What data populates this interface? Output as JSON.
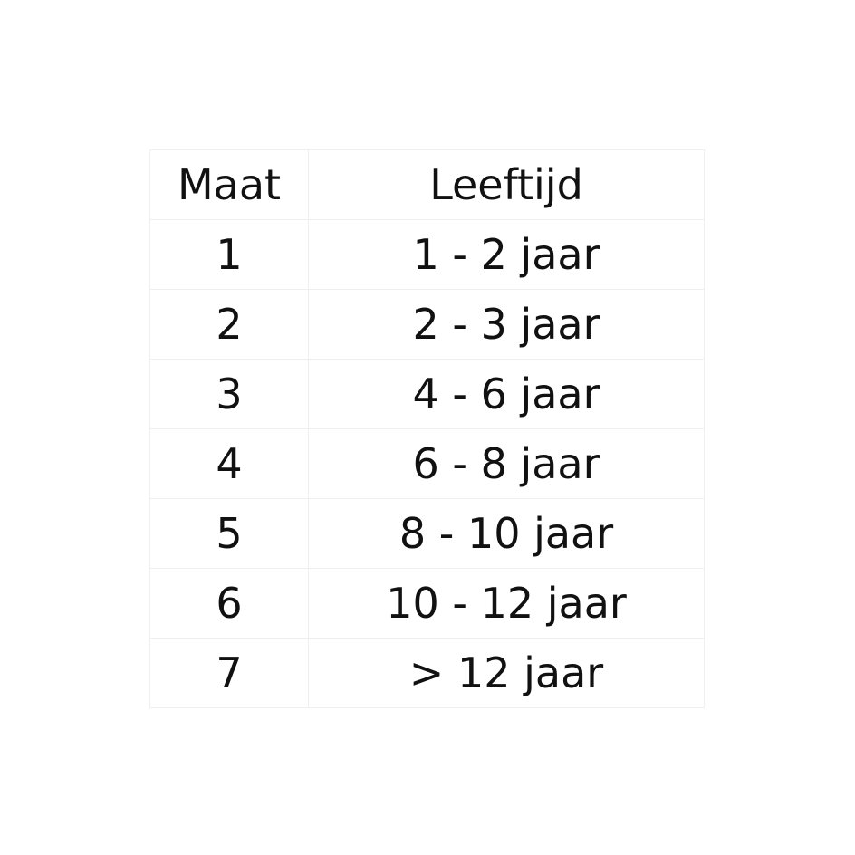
{
  "table": {
    "headers": [
      "Maat",
      "Leeftijd"
    ],
    "rows": [
      [
        "1",
        "1 - 2 jaar"
      ],
      [
        "2",
        "2 - 3 jaar"
      ],
      [
        "3",
        "4 - 6 jaar"
      ],
      [
        "4",
        "6 - 8 jaar"
      ],
      [
        "5",
        "8 - 10 jaar"
      ],
      [
        "6",
        "10 - 12 jaar"
      ],
      [
        "7",
        "> 12 jaar"
      ]
    ]
  }
}
